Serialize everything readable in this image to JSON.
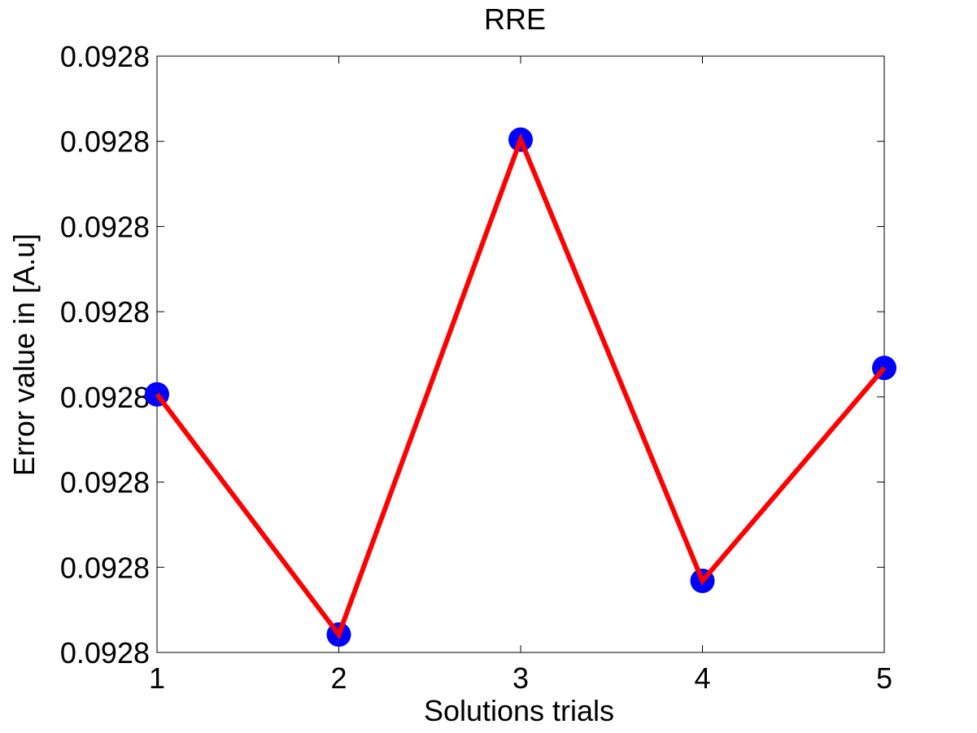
{
  "chart_data": {
    "type": "line",
    "title": "RRE",
    "xlabel": "Solutions trials",
    "ylabel": "Error value in [A.u]",
    "x": [
      1,
      2,
      3,
      4,
      5
    ],
    "x_ticks": [
      "1",
      "2",
      "3",
      "4",
      "5"
    ],
    "y_ticks": [
      "0.0928",
      "0.0928",
      "0.0928",
      "0.0928",
      "0.0928",
      "0.0928",
      "0.0928",
      "0.0928"
    ],
    "ylim": [
      0,
      7
    ],
    "xlim": [
      1,
      5
    ],
    "series": [
      {
        "values": [
          3.03,
          0.21,
          6.02,
          0.84,
          3.34
        ]
      }
    ],
    "grid": false,
    "colors": {
      "line": "#ff0000",
      "marker": "#0000ff",
      "axes": "#000000"
    }
  }
}
